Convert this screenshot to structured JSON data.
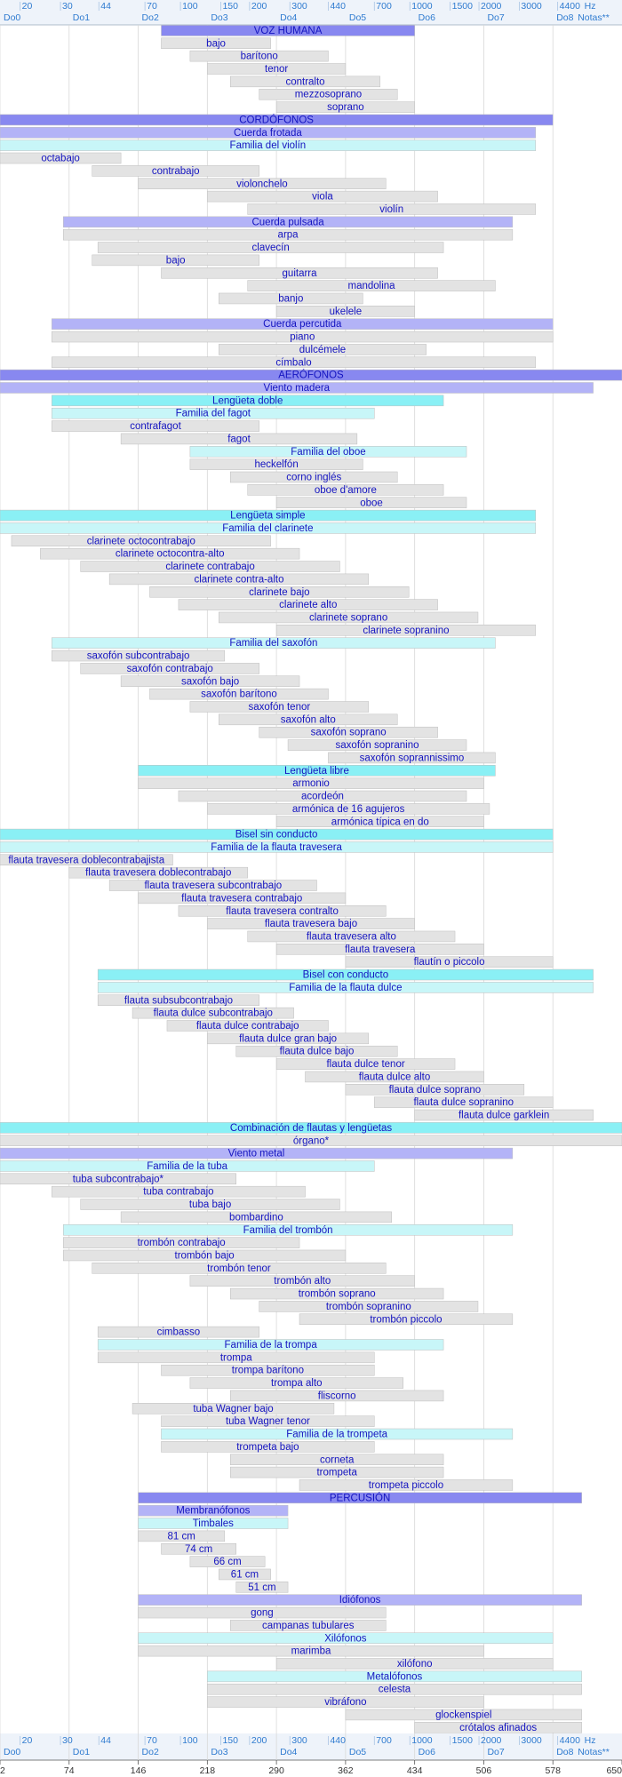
{
  "chart_data": {
    "type": "range_bar",
    "categories": [
      "VOZ HUMANA",
      "bajo",
      "barítono",
      "tenor",
      "contralto",
      "mezzosoprano",
      "soprano",
      "CORDÓFONOS",
      "Cuerda frotada",
      "Familia del violín",
      "octabajo",
      "contrabajo",
      "violonchelo",
      "viola",
      "violín",
      "Cuerda pulsada",
      "arpa",
      "clavecín",
      "bajo",
      "guitarra",
      "mandolina",
      "banjo",
      "ukelele",
      "Cuerda percutida",
      "piano",
      "dulcémele",
      "címbalo",
      "AERÓFONOS",
      "Viento madera",
      "Lengüeta doble",
      "Familia del fagot",
      "contrafagot",
      "fagot",
      "Familia del oboe",
      "heckelfón",
      "corno inglés",
      "oboe d'amore",
      "oboe",
      "Lengüeta simple",
      "Familia del clarinete",
      "clarinete octocontrabajo",
      "clarinete octocontra-alto",
      "clarinete contrabajo",
      "clarinete contra-alto",
      "clarinete bajo",
      "clarinete alto",
      "clarinete soprano",
      "clarinete sopranino",
      "Familia del saxofón",
      "saxofón subcontrabajo",
      "saxofón contrabajo",
      "saxofón bajo",
      "saxofón barítono",
      "saxofón tenor",
      "saxofón alto",
      "saxofón soprano",
      "saxofón sopranino",
      "saxofón soprannissimo",
      "Lengüeta libre",
      "armonio",
      "acordeón",
      "armónica de 16 agujeros",
      "armónica típica en do",
      "Bisel sin conducto",
      "Familia de la flauta travesera",
      "flauta travesera doblecontrabajista",
      "flauta travesera doblecontrabajo",
      "flauta travesera subcontrabajo",
      "flauta travesera contrabajo",
      "flauta travesera contralto",
      "flauta travesera bajo",
      "flauta travesera alto",
      "flauta travesera",
      "flautín o piccolo",
      "Bisel con conducto",
      "Familia de la flauta dulce",
      "flauta subsubcontrabajo",
      "flauta dulce subcontrabajo",
      "flauta dulce contrabajo",
      "flauta dulce gran bajo",
      "flauta dulce bajo",
      "flauta dulce tenor",
      "flauta dulce alto",
      "flauta dulce soprano",
      "flauta dulce sopranino",
      "flauta dulce garklein",
      "Combinación de flautas y lengüetas",
      "órgano*",
      "Viento metal",
      "Familia de la tuba",
      "tuba subcontrabajo*",
      "tuba contrabajo",
      "tuba bajo",
      "bombardino",
      "Familia del trombón",
      "trombón contrabajo",
      "trombón bajo",
      "trombón tenor",
      "trombón alto",
      "trombón soprano",
      "trombón sopranino",
      "trombón piccolo",
      "cimbasso",
      "Familia de la trompa",
      "trompa",
      "trompa barítono",
      "trompa alto",
      "fliscorno",
      "tuba Wagner bajo",
      "tuba Wagner tenor",
      "Familia de la trompeta",
      "trompeta bajo",
      "corneta",
      "trompeta",
      "trompeta piccolo",
      "PERCUSIÓN",
      "Membranófonos",
      "Timbales",
      "81 cm",
      "74 cm",
      "66 cm",
      "61 cm",
      "51 cm",
      "Idiófonos",
      "gong",
      "campanas tubulares",
      "Xilófonos",
      "marimba",
      "xilófono",
      "Metalófonos",
      "celesta",
      "vibráfono",
      "glockenspiel",
      "crótalos afinados"
    ],
    "values": [
      [
        170,
        434
      ],
      [
        170,
        284
      ],
      [
        200,
        344
      ],
      [
        218,
        362
      ],
      [
        242,
        398
      ],
      [
        272,
        416
      ],
      [
        290,
        434
      ],
      [
        2,
        578
      ],
      [
        2,
        560
      ],
      [
        2,
        560
      ],
      [
        2,
        128
      ],
      [
        98,
        272
      ],
      [
        146,
        404
      ],
      [
        218,
        458
      ],
      [
        260,
        560
      ],
      [
        68,
        536
      ],
      [
        68,
        536
      ],
      [
        104,
        464
      ],
      [
        98,
        272
      ],
      [
        170,
        458
      ],
      [
        260,
        518
      ],
      [
        230,
        380
      ],
      [
        290,
        434
      ],
      [
        56,
        578
      ],
      [
        56,
        578
      ],
      [
        230,
        446
      ],
      [
        56,
        560
      ],
      [
        2,
        650
      ],
      [
        2,
        620
      ],
      [
        56,
        464
      ],
      [
        56,
        392
      ],
      [
        56,
        272
      ],
      [
        128,
        374
      ],
      [
        200,
        488
      ],
      [
        200,
        380
      ],
      [
        242,
        416
      ],
      [
        260,
        464
      ],
      [
        290,
        488
      ],
      [
        2,
        560
      ],
      [
        2,
        560
      ],
      [
        14,
        284
      ],
      [
        44,
        314
      ],
      [
        86,
        356
      ],
      [
        116,
        386
      ],
      [
        158,
        428
      ],
      [
        188,
        458
      ],
      [
        230,
        500
      ],
      [
        290,
        560
      ],
      [
        56,
        518
      ],
      [
        56,
        236
      ],
      [
        86,
        272
      ],
      [
        128,
        314
      ],
      [
        158,
        344
      ],
      [
        200,
        386
      ],
      [
        230,
        416
      ],
      [
        272,
        458
      ],
      [
        302,
        488
      ],
      [
        344,
        518
      ],
      [
        146,
        518
      ],
      [
        146,
        506
      ],
      [
        188,
        488
      ],
      [
        218,
        512
      ],
      [
        290,
        506
      ],
      [
        2,
        578
      ],
      [
        2,
        578
      ],
      [
        2,
        182
      ],
      [
        74,
        260
      ],
      [
        116,
        332
      ],
      [
        146,
        362
      ],
      [
        188,
        404
      ],
      [
        218,
        434
      ],
      [
        260,
        476
      ],
      [
        290,
        506
      ],
      [
        362,
        578
      ],
      [
        104,
        620
      ],
      [
        104,
        620
      ],
      [
        104,
        272
      ],
      [
        140,
        308
      ],
      [
        176,
        344
      ],
      [
        218,
        386
      ],
      [
        248,
        416
      ],
      [
        290,
        476
      ],
      [
        320,
        506
      ],
      [
        362,
        548
      ],
      [
        392,
        578
      ],
      [
        434,
        620
      ],
      [
        2,
        650
      ],
      [
        2,
        650
      ],
      [
        2,
        536
      ],
      [
        2,
        392
      ],
      [
        2,
        248
      ],
      [
        56,
        320
      ],
      [
        86,
        356
      ],
      [
        128,
        410
      ],
      [
        68,
        536
      ],
      [
        68,
        314
      ],
      [
        68,
        362
      ],
      [
        98,
        404
      ],
      [
        200,
        434
      ],
      [
        242,
        464
      ],
      [
        272,
        500
      ],
      [
        314,
        536
      ],
      [
        104,
        272
      ],
      [
        104,
        464
      ],
      [
        104,
        392
      ],
      [
        170,
        392
      ],
      [
        200,
        422
      ],
      [
        242,
        464
      ],
      [
        140,
        350
      ],
      [
        170,
        392
      ],
      [
        170,
        536
      ],
      [
        170,
        392
      ],
      [
        242,
        464
      ],
      [
        242,
        464
      ],
      [
        314,
        536
      ],
      [
        146,
        608
      ],
      [
        146,
        302
      ],
      [
        146,
        302
      ],
      [
        146,
        236
      ],
      [
        170,
        248
      ],
      [
        200,
        278
      ],
      [
        230,
        284
      ],
      [
        248,
        302
      ],
      [
        146,
        608
      ],
      [
        146,
        404
      ],
      [
        242,
        404
      ],
      [
        146,
        578
      ],
      [
        146,
        506
      ],
      [
        290,
        578
      ],
      [
        218,
        608
      ],
      [
        218,
        608
      ],
      [
        218,
        506
      ],
      [
        362,
        608
      ],
      [
        434,
        608
      ]
    ],
    "colors": [
      "#8888f0",
      "#e3e3e3",
      "#e3e3e3",
      "#e3e3e3",
      "#e3e3e3",
      "#e3e3e3",
      "#e3e3e3",
      "#8888f0",
      "#b3b3f7",
      "#c8f6f8",
      "#e3e3e3",
      "#e3e3e3",
      "#e3e3e3",
      "#e3e3e3",
      "#e3e3e3",
      "#b3b3f7",
      "#e3e3e3",
      "#e3e3e3",
      "#e3e3e3",
      "#e3e3e3",
      "#e3e3e3",
      "#e3e3e3",
      "#e3e3e3",
      "#b3b3f7",
      "#e3e3e3",
      "#e3e3e3",
      "#e3e3e3",
      "#8888f0",
      "#b3b3f7",
      "#8af0f5",
      "#c8f6f8",
      "#e3e3e3",
      "#e3e3e3",
      "#c8f6f8",
      "#e3e3e3",
      "#e3e3e3",
      "#e3e3e3",
      "#e3e3e3",
      "#8af0f5",
      "#c8f6f8",
      "#e3e3e3",
      "#e3e3e3",
      "#e3e3e3",
      "#e3e3e3",
      "#e3e3e3",
      "#e3e3e3",
      "#e3e3e3",
      "#e3e3e3",
      "#c8f6f8",
      "#e3e3e3",
      "#e3e3e3",
      "#e3e3e3",
      "#e3e3e3",
      "#e3e3e3",
      "#e3e3e3",
      "#e3e3e3",
      "#e3e3e3",
      "#e3e3e3",
      "#8af0f5",
      "#e3e3e3",
      "#e3e3e3",
      "#e3e3e3",
      "#e3e3e3",
      "#8af0f5",
      "#c8f6f8",
      "#e3e3e3",
      "#e3e3e3",
      "#e3e3e3",
      "#e3e3e3",
      "#e3e3e3",
      "#e3e3e3",
      "#e3e3e3",
      "#e3e3e3",
      "#e3e3e3",
      "#8af0f5",
      "#c8f6f8",
      "#e3e3e3",
      "#e3e3e3",
      "#e3e3e3",
      "#e3e3e3",
      "#e3e3e3",
      "#e3e3e3",
      "#e3e3e3",
      "#e3e3e3",
      "#e3e3e3",
      "#e3e3e3",
      "#8af0f5",
      "#e3e3e3",
      "#b3b3f7",
      "#c8f6f8",
      "#e3e3e3",
      "#e3e3e3",
      "#e3e3e3",
      "#e3e3e3",
      "#c8f6f8",
      "#e3e3e3",
      "#e3e3e3",
      "#e3e3e3",
      "#e3e3e3",
      "#e3e3e3",
      "#e3e3e3",
      "#e3e3e3",
      "#e3e3e3",
      "#c8f6f8",
      "#e3e3e3",
      "#e3e3e3",
      "#e3e3e3",
      "#e3e3e3",
      "#e3e3e3",
      "#e3e3e3",
      "#c8f6f8",
      "#e3e3e3",
      "#e3e3e3",
      "#e3e3e3",
      "#e3e3e3",
      "#8888f0",
      "#b3b3f7",
      "#c8f6f8",
      "#e3e3e3",
      "#e3e3e3",
      "#e3e3e3",
      "#e3e3e3",
      "#e3e3e3",
      "#b3b3f7",
      "#e3e3e3",
      "#e3e3e3",
      "#c8f6f8",
      "#e3e3e3",
      "#e3e3e3",
      "#c8f6f8",
      "#e3e3e3",
      "#e3e3e3",
      "#e3e3e3",
      "#e3e3e3"
    ],
    "xlim": [
      2,
      650
    ],
    "xticks": [
      2,
      74,
      146,
      218,
      290,
      362,
      434,
      506,
      578,
      650
    ],
    "note_ticks": [
      {
        "value": 2,
        "label": "Do0"
      },
      {
        "value": 74,
        "label": "Do1"
      },
      {
        "value": 146,
        "label": "Do2"
      },
      {
        "value": 218,
        "label": "Do3"
      },
      {
        "value": 290,
        "label": "Do4"
      },
      {
        "value": 362,
        "label": "Do5"
      },
      {
        "value": 434,
        "label": "Do6"
      },
      {
        "value": 506,
        "label": "Do7"
      },
      {
        "value": 578,
        "label": "Do8"
      }
    ],
    "note_axis_label": "Notas**",
    "hz_ticks": [
      {
        "value": 23,
        "label": "20"
      },
      {
        "value": 65,
        "label": "30"
      },
      {
        "value": 105,
        "label": "44"
      },
      {
        "value": 153,
        "label": "70"
      },
      {
        "value": 190,
        "label": "100"
      },
      {
        "value": 232,
        "label": "150"
      },
      {
        "value": 262,
        "label": "200"
      },
      {
        "value": 304,
        "label": "300"
      },
      {
        "value": 344,
        "label": "440"
      },
      {
        "value": 392,
        "label": "700"
      },
      {
        "value": 429,
        "label": "1000"
      },
      {
        "value": 471,
        "label": "1500"
      },
      {
        "value": 501,
        "label": "2000"
      },
      {
        "value": 543,
        "label": "3000"
      },
      {
        "value": 583,
        "label": "4400"
      }
    ],
    "hz_axis_label": "Hz",
    "grid": true
  }
}
